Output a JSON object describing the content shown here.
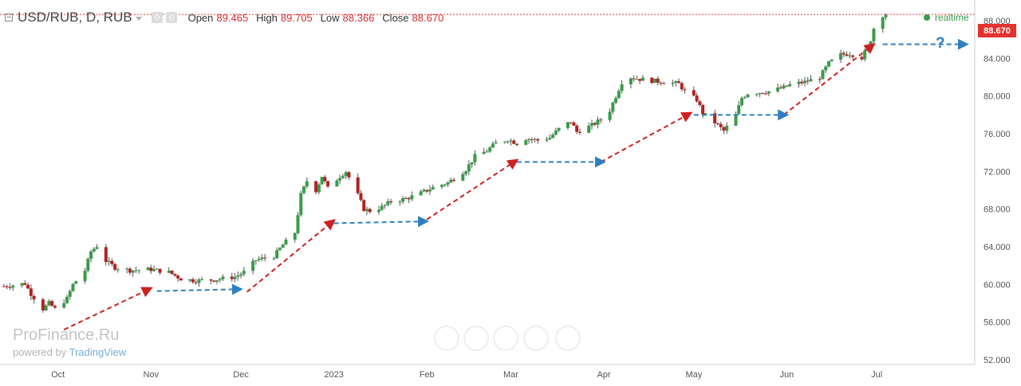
{
  "header": {
    "title": "USD/RUB, D, RUB",
    "open_label": "Open",
    "open": "89.465",
    "high_label": "High",
    "high": "89.705",
    "low_label": "Low",
    "low": "88.366",
    "close_label": "Close",
    "close": "88.670",
    "realtime": "realtime"
  },
  "watermark": {
    "brand": "ProFinance.Ru",
    "powered_prefix": "powered by",
    "powered_name": "TradingView"
  },
  "annotation": {
    "question_mark": "?"
  },
  "colors": {
    "up": "#3a9b4a",
    "down": "#b22222",
    "wick": "#555555",
    "red_arrow": "#cc2222",
    "blue_arrow": "#2f7fc0",
    "price_line": "#e5322c",
    "grid": "#e9edf2"
  },
  "chart_data": {
    "type": "candlestick",
    "y_ticks": [
      "52.000",
      "56.000",
      "60.000",
      "64.000",
      "68.000",
      "72.000",
      "76.000",
      "80.000",
      "84.000",
      "88.000"
    ],
    "y_tick_values": [
      52,
      56,
      60,
      64,
      68,
      72,
      76,
      80,
      84,
      88
    ],
    "ylim": [
      51.5,
      90.2
    ],
    "x_ticks": [
      "Oct",
      "Nov",
      "Dec",
      "2023",
      "Feb",
      "Mar",
      "Apr",
      "May",
      "Jun",
      "Jul"
    ],
    "x_tick_dates": [
      "2022-10-01",
      "2022-11-01",
      "2022-12-01",
      "2023-01-01",
      "2023-02-01",
      "2023-03-01",
      "2023-04-01",
      "2023-05-01",
      "2023-06-01",
      "2023-07-01"
    ],
    "last_price": "88.670",
    "last_price_value": 88.67,
    "close_path": [
      [
        "2022-09-13",
        59.8
      ],
      [
        "2022-09-20",
        60.1
      ],
      [
        "2022-09-22",
        59.0
      ],
      [
        "2022-09-26",
        57.4
      ],
      [
        "2022-09-28",
        58.0
      ],
      [
        "2022-09-30",
        57.4
      ],
      [
        "2022-10-04",
        58.5
      ],
      [
        "2022-10-06",
        60.0
      ],
      [
        "2022-10-10",
        61.5
      ],
      [
        "2022-10-12",
        63.5
      ],
      [
        "2022-10-14",
        64.1
      ],
      [
        "2022-10-17",
        62.5
      ],
      [
        "2022-10-20",
        61.8
      ],
      [
        "2022-10-25",
        61.5
      ],
      [
        "2022-11-01",
        61.6
      ],
      [
        "2022-11-07",
        61.3
      ],
      [
        "2022-11-11",
        60.6
      ],
      [
        "2022-11-16",
        60.4
      ],
      [
        "2022-11-22",
        60.5
      ],
      [
        "2022-11-29",
        60.8
      ],
      [
        "2022-12-02",
        61.3
      ],
      [
        "2022-12-06",
        62.6
      ],
      [
        "2022-12-12",
        63.0
      ],
      [
        "2022-12-15",
        64.2
      ],
      [
        "2022-12-19",
        65.5
      ],
      [
        "2022-12-21",
        69.5
      ],
      [
        "2022-12-23",
        71.0
      ],
      [
        "2022-12-26",
        70.0
      ],
      [
        "2022-12-28",
        71.5
      ],
      [
        "2022-12-30",
        70.2
      ],
      [
        "2023-01-03",
        71.5
      ],
      [
        "2023-01-05",
        72.0
      ],
      [
        "2023-01-09",
        69.5
      ],
      [
        "2023-01-11",
        68.0
      ],
      [
        "2023-01-13",
        67.8
      ],
      [
        "2023-01-17",
        68.2
      ],
      [
        "2023-01-20",
        68.8
      ],
      [
        "2023-01-25",
        69.1
      ],
      [
        "2023-01-30",
        69.7
      ],
      [
        "2023-02-03",
        70.3
      ],
      [
        "2023-02-08",
        70.8
      ],
      [
        "2023-02-14",
        72.2
      ],
      [
        "2023-02-17",
        73.6
      ],
      [
        "2023-02-21",
        74.2
      ],
      [
        "2023-02-24",
        75.0
      ],
      [
        "2023-02-28",
        75.4
      ],
      [
        "2023-03-03",
        75.0
      ],
      [
        "2023-03-06",
        75.5
      ],
      [
        "2023-03-10",
        75.3
      ],
      [
        "2023-03-14",
        75.6
      ],
      [
        "2023-03-17",
        76.5
      ],
      [
        "2023-03-21",
        77.3
      ],
      [
        "2023-03-23",
        76.2
      ],
      [
        "2023-03-28",
        76.9
      ],
      [
        "2023-03-31",
        77.5
      ],
      [
        "2023-04-03",
        78.5
      ],
      [
        "2023-04-05",
        80.0
      ],
      [
        "2023-04-07",
        81.5
      ],
      [
        "2023-04-10",
        82.0
      ],
      [
        "2023-04-13",
        81.8
      ],
      [
        "2023-04-18",
        81.6
      ],
      [
        "2023-04-21",
        81.5
      ],
      [
        "2023-04-26",
        81.3
      ],
      [
        "2023-04-28",
        80.5
      ],
      [
        "2023-05-02",
        79.6
      ],
      [
        "2023-05-04",
        78.2
      ],
      [
        "2023-05-08",
        77.2
      ],
      [
        "2023-05-11",
        76.3
      ],
      [
        "2023-05-15",
        78.0
      ],
      [
        "2023-05-17",
        79.8
      ],
      [
        "2023-05-19",
        80.3
      ],
      [
        "2023-05-23",
        80.4
      ],
      [
        "2023-05-26",
        80.5
      ],
      [
        "2023-05-31",
        80.9
      ],
      [
        "2023-06-02",
        81.2
      ],
      [
        "2023-06-07",
        81.5
      ],
      [
        "2023-06-12",
        82.0
      ],
      [
        "2023-06-15",
        83.5
      ],
      [
        "2023-06-19",
        84.4
      ],
      [
        "2023-06-22",
        84.5
      ],
      [
        "2023-06-26",
        84.1
      ],
      [
        "2023-06-28",
        85.2
      ],
      [
        "2023-06-29",
        86.0
      ],
      [
        "2023-06-30",
        87.2
      ],
      [
        "2023-07-03",
        88.6
      ],
      [
        "2023-07-04",
        88.67
      ]
    ],
    "annotations": {
      "red_arrows": [
        [
          [
            "2022-10-03",
            55.2
          ],
          [
            "2022-11-01",
            59.6
          ]
        ],
        [
          [
            "2022-12-03",
            59.2
          ],
          [
            "2023-01-01",
            66.8
          ]
        ],
        [
          [
            "2023-02-01",
            66.9
          ],
          [
            "2023-03-03",
            73.2
          ]
        ],
        [
          [
            "2023-03-31",
            73.0
          ],
          [
            "2023-04-30",
            78.2
          ]
        ],
        [
          [
            "2023-05-31",
            78.0
          ],
          [
            "2023-06-30",
            85.5
          ]
        ]
      ],
      "blue_arrows": [
        [
          [
            "2022-11-03",
            59.3
          ],
          [
            "2022-12-01",
            59.5
          ]
        ],
        [
          [
            "2023-01-01",
            66.5
          ],
          [
            "2023-02-01",
            66.7
          ]
        ],
        [
          [
            "2023-03-03",
            73.0
          ],
          [
            "2023-04-01",
            73.0
          ]
        ],
        [
          [
            "2023-05-01",
            78.0
          ],
          [
            "2023-06-01",
            78.0
          ]
        ],
        [
          [
            "2023-07-03",
            85.5
          ],
          [
            "2023-07-31",
            85.5
          ]
        ]
      ]
    }
  }
}
